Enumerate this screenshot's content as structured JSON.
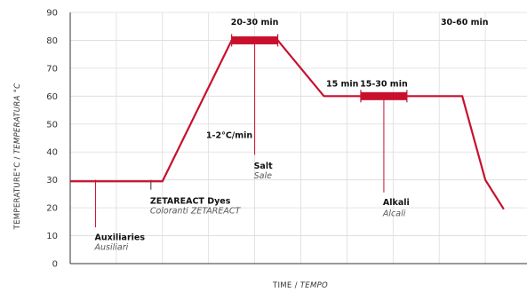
{
  "chart_data": {
    "type": "line",
    "xlabel": "TIME",
    "xlabel_it": "TEMPO",
    "ylabel": "TEMPERATURE°C",
    "ylabel_it": "TEMPERATURA °C",
    "ylim": [
      0,
      90
    ],
    "y_ticks": [
      0,
      10,
      20,
      30,
      40,
      50,
      60,
      70,
      80,
      90
    ],
    "xlim": [
      0,
      100
    ],
    "grid_x": [
      10,
      20,
      30,
      40,
      50,
      60,
      70,
      80,
      90,
      100
    ],
    "series": [
      {
        "color": "#c8102e",
        "x": [
          0,
          20,
          35,
          45,
          55,
          85,
          90,
          94
        ],
        "y": [
          29.5,
          29.5,
          80,
          80,
          60,
          60,
          30,
          19.5
        ]
      }
    ],
    "duration_bars": [
      {
        "x_start": 35,
        "x_end": 45,
        "y": 80
      },
      {
        "x_start": 63,
        "x_end": 73,
        "y": 60
      }
    ],
    "labels": [
      {
        "text": "20-30 min",
        "x": 40,
        "y": 85.5,
        "anchor": "middle",
        "style": "bold"
      },
      {
        "text": "1-2°C/min",
        "x": 34.5,
        "y": 45,
        "anchor": "middle",
        "style": "bold"
      },
      {
        "text": "15 min",
        "x": 59,
        "y": 63.5,
        "anchor": "middle",
        "style": "bold"
      },
      {
        "text": "15-30 min",
        "x": 68,
        "y": 63.5,
        "anchor": "middle",
        "style": "bold"
      },
      {
        "text": "30-60 min",
        "x": 85.5,
        "y": 85.5,
        "anchor": "middle",
        "style": "bold"
      }
    ],
    "markers": [
      {
        "x": 5.5,
        "y_from": 30,
        "y_to": 13,
        "line_color": "#c8102e",
        "title": "Auxiliaries",
        "subtitle": "Ausiliari",
        "text_x": 5.5,
        "title_y": 8.5,
        "sub_y": 5
      },
      {
        "x": 17.5,
        "y_from": 30,
        "y_to": 26.5,
        "line_color": "#333333",
        "title": "ZETAREACT Dyes",
        "subtitle": "Coloranti ZETAREACT",
        "text_x": 17.5,
        "title_y": 21.5,
        "sub_y": 18
      },
      {
        "x": 40,
        "y_from": 80,
        "y_to": 39,
        "line_color": "#c8102e",
        "title": "Salt",
        "subtitle": "Sale",
        "text_x": 40,
        "title_y": 34,
        "sub_y": 30.5
      },
      {
        "x": 68,
        "y_from": 60,
        "y_to": 25.5,
        "line_color": "#c8102e",
        "title": "Alkali",
        "subtitle": "Alcali",
        "text_x": 68,
        "title_y": 21,
        "sub_y": 17
      }
    ]
  }
}
